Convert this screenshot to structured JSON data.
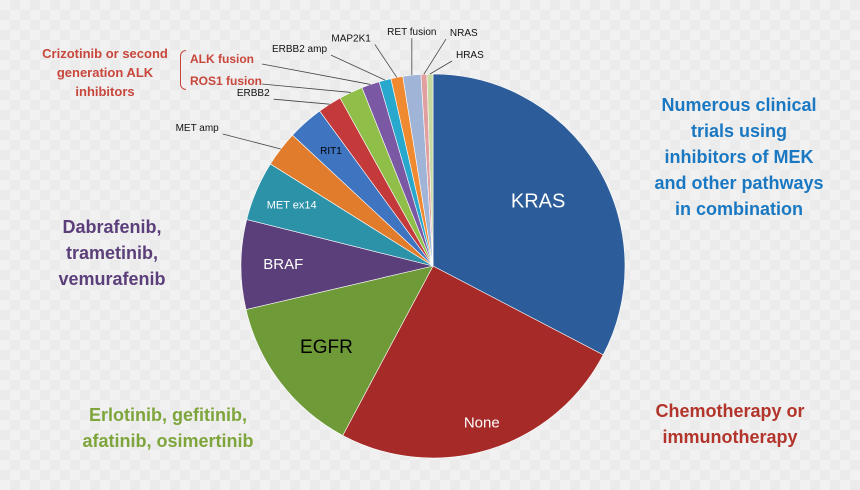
{
  "chart_data": {
    "type": "pie",
    "title": "",
    "slices": [
      {
        "label": "KRAS",
        "value": 32.5,
        "color": "#2c5c99"
      },
      {
        "label": "None",
        "value": 25.0,
        "color": "#a52a28"
      },
      {
        "label": "EGFR",
        "value": 13.5,
        "color": "#6e9a38"
      },
      {
        "label": "BRAF",
        "value": 7.5,
        "color": "#5b3f7a"
      },
      {
        "label": "MET ex14",
        "value": 5.0,
        "color": "#2b92a8"
      },
      {
        "label": "MET amp",
        "value": 3.0,
        "color": "#e07c2c"
      },
      {
        "label": "RIT1",
        "value": 3.0,
        "color": "#3f74c0"
      },
      {
        "label": "ERBB2",
        "value": 2.0,
        "color": "#c43a3a"
      },
      {
        "label": "ROS1 fusion",
        "value": 2.0,
        "color": "#90bf49"
      },
      {
        "label": "ALK fusion",
        "value": 1.5,
        "color": "#7a58a4"
      },
      {
        "label": "ERBB2 amp",
        "value": 1.0,
        "color": "#28a8cc"
      },
      {
        "label": "MAP2K1",
        "value": 1.0,
        "color": "#f08a30"
      },
      {
        "label": "RET fusion",
        "value": 1.5,
        "color": "#9fb4d6"
      },
      {
        "label": "NRAS",
        "value": 0.5,
        "color": "#e0a0a0"
      },
      {
        "label": "HRAS",
        "value": 0.5,
        "color": "#c6d9a0"
      }
    ]
  },
  "annotations": {
    "mek": "Numerous clinical trials using inhibitors of MEK and other pathways in combination",
    "braf": "Dabrafenib, trametinib, vemurafenib",
    "egfr": "Erlotinib, gefitinib, afatinib, osimertinib",
    "chemo": "Chemotherapy or immunotherapy",
    "alk": "Crizotinib or second generation ALK inhibitors",
    "alk_fusion": "ALK fusion",
    "ros1_fusion": "ROS1 fusion"
  },
  "colors": {
    "mek_text": "#1a78c2",
    "braf_text": "#5b3f7a",
    "egfr_text": "#7ea53c",
    "chemo_text": "#b2342a",
    "alk_text": "#c8463b"
  }
}
